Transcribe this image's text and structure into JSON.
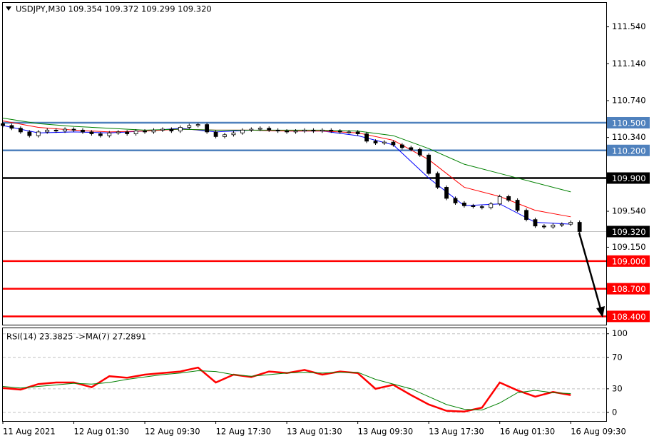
{
  "chart_data": [
    {
      "type": "candlestick",
      "title": "USDJPY,M30  109.354 109.372 109.299 109.320",
      "xlim": [
        0,
        136
      ],
      "ylim": [
        108.31,
        111.8
      ],
      "yticks": [
        {
          "value": 111.54,
          "label": "111.540"
        },
        {
          "value": 111.14,
          "label": "111.140"
        },
        {
          "value": 110.74,
          "label": "110.740"
        },
        {
          "value": 110.34,
          "label": "110.340"
        },
        {
          "value": 109.54,
          "label": "109.540"
        },
        {
          "value": 109.15,
          "label": "109.150"
        }
      ],
      "x": [
        0,
        2,
        4,
        6,
        8,
        10,
        12,
        14,
        16,
        18,
        20,
        22,
        24,
        26,
        28,
        30,
        32,
        34,
        36,
        38,
        40,
        42,
        44,
        46,
        48,
        50,
        52,
        54,
        56,
        58,
        60,
        62,
        64,
        66,
        68,
        70,
        72,
        74,
        76,
        78,
        80,
        82,
        84,
        86,
        88,
        90,
        92,
        94,
        96,
        98,
        100,
        102,
        104,
        106,
        108,
        110,
        112,
        114,
        116,
        118,
        120,
        122,
        124,
        126,
        128,
        130
      ],
      "open": [
        110.49,
        110.47,
        110.44,
        110.4,
        110.36,
        110.4,
        110.42,
        110.41,
        110.43,
        110.42,
        110.4,
        110.38,
        110.36,
        110.39,
        110.4,
        110.38,
        110.41,
        110.4,
        110.42,
        110.43,
        110.41,
        110.45,
        110.47,
        110.48,
        110.4,
        110.35,
        110.37,
        110.39,
        110.42,
        110.43,
        110.44,
        110.42,
        110.41,
        110.4,
        110.41,
        110.42,
        110.41,
        110.42,
        110.41,
        110.4,
        110.4,
        110.38,
        110.3,
        110.28,
        110.29,
        110.26,
        110.23,
        110.21,
        110.15,
        109.95,
        109.8,
        109.68,
        109.63,
        109.6,
        109.59,
        109.58,
        109.62,
        109.7,
        109.66,
        109.55,
        109.45,
        109.38,
        109.37,
        109.39,
        109.4,
        109.42
      ],
      "high": [
        110.51,
        110.49,
        110.46,
        110.42,
        110.42,
        110.44,
        110.44,
        110.45,
        110.45,
        110.44,
        110.42,
        110.4,
        110.41,
        110.42,
        110.42,
        110.43,
        110.43,
        110.44,
        110.45,
        110.45,
        110.47,
        110.49,
        110.5,
        110.5,
        110.42,
        110.39,
        110.41,
        110.44,
        110.45,
        110.46,
        110.46,
        110.44,
        110.43,
        110.43,
        110.44,
        110.44,
        110.44,
        110.44,
        110.43,
        110.42,
        110.42,
        110.4,
        110.32,
        110.31,
        110.31,
        110.28,
        110.25,
        110.23,
        110.17,
        109.97,
        109.82,
        109.7,
        109.65,
        109.62,
        109.61,
        109.64,
        109.72,
        109.72,
        109.68,
        109.57,
        109.47,
        109.4,
        109.41,
        109.42,
        109.44,
        109.44
      ],
      "low": [
        110.45,
        110.42,
        110.38,
        110.34,
        110.34,
        110.38,
        110.39,
        110.39,
        110.4,
        110.38,
        110.36,
        110.34,
        110.34,
        110.37,
        110.36,
        110.36,
        110.38,
        110.38,
        110.4,
        110.39,
        110.39,
        110.43,
        110.45,
        110.38,
        110.33,
        110.33,
        110.35,
        110.37,
        110.4,
        110.41,
        110.4,
        110.39,
        110.38,
        110.38,
        110.39,
        110.39,
        110.39,
        110.39,
        110.38,
        110.38,
        110.36,
        110.28,
        110.26,
        110.26,
        110.24,
        110.21,
        110.19,
        110.13,
        109.93,
        109.78,
        109.66,
        109.61,
        109.58,
        109.57,
        109.56,
        109.56,
        109.6,
        109.64,
        109.53,
        109.43,
        109.36,
        109.35,
        109.35,
        109.37,
        109.38,
        109.3
      ],
      "close": [
        110.47,
        110.44,
        110.4,
        110.36,
        110.4,
        110.42,
        110.41,
        110.43,
        110.42,
        110.4,
        110.38,
        110.36,
        110.39,
        110.4,
        110.38,
        110.41,
        110.4,
        110.42,
        110.43,
        110.41,
        110.45,
        110.47,
        110.48,
        110.4,
        110.35,
        110.37,
        110.39,
        110.42,
        110.43,
        110.44,
        110.42,
        110.41,
        110.4,
        110.41,
        110.42,
        110.41,
        110.42,
        110.41,
        110.4,
        110.4,
        110.38,
        110.3,
        110.28,
        110.29,
        110.26,
        110.23,
        110.21,
        110.15,
        109.95,
        109.8,
        109.68,
        109.63,
        109.6,
        109.59,
        109.58,
        109.62,
        109.7,
        109.66,
        109.55,
        109.45,
        109.38,
        109.37,
        109.39,
        109.4,
        109.42,
        109.32
      ],
      "series": [
        {
          "color": "#0000ff",
          "x": [
            0,
            8,
            16,
            24,
            32,
            40,
            48,
            56,
            64,
            72,
            80,
            88,
            96,
            104,
            112,
            120,
            128
          ],
          "values": [
            110.47,
            110.39,
            110.4,
            110.39,
            110.41,
            110.44,
            110.4,
            110.42,
            110.41,
            110.41,
            110.36,
            110.26,
            109.9,
            109.6,
            109.62,
            109.42,
            109.4
          ]
        },
        {
          "color": "#ff0000",
          "x": [
            0,
            8,
            16,
            24,
            32,
            40,
            48,
            56,
            64,
            72,
            80,
            88,
            96,
            104,
            112,
            120,
            128
          ],
          "values": [
            110.52,
            110.45,
            110.42,
            110.4,
            110.41,
            110.43,
            110.42,
            110.42,
            110.41,
            110.41,
            110.39,
            110.31,
            110.1,
            109.8,
            109.7,
            109.55,
            109.48
          ]
        },
        {
          "color": "#008000",
          "x": [
            0,
            8,
            16,
            24,
            32,
            40,
            48,
            56,
            64,
            72,
            80,
            88,
            96,
            104,
            112,
            120,
            128
          ],
          "values": [
            110.55,
            110.49,
            110.46,
            110.44,
            110.42,
            110.43,
            110.42,
            110.42,
            110.42,
            110.42,
            110.41,
            110.36,
            110.22,
            110.05,
            109.95,
            109.85,
            109.75
          ]
        }
      ],
      "levels": [
        {
          "value": 110.5,
          "label": "110.500",
          "color": "#4f81bd"
        },
        {
          "value": 110.2,
          "label": "110.200",
          "color": "#4f81bd"
        },
        {
          "value": 109.9,
          "label": "109.900",
          "color": "#000000"
        },
        {
          "value": 109.32,
          "label": "109.320",
          "color": "#c0c0c0"
        },
        {
          "value": 109.0,
          "label": "109.000",
          "color": "#ff0000"
        },
        {
          "value": 108.7,
          "label": "108.700",
          "color": "#ff0000"
        },
        {
          "value": 108.4,
          "label": "108.400",
          "color": "#ff0000"
        }
      ]
    },
    {
      "type": "line",
      "title": "RSI(14) 23.3825   ->MA(7) 27.2891",
      "xlim": [
        0,
        136
      ],
      "ylim": [
        -11,
        107
      ],
      "yticks": [
        0,
        30,
        70,
        100
      ],
      "xticks": [
        {
          "value": 0,
          "label": "11 Aug 2021"
        },
        {
          "value": 16,
          "label": "12 Aug 01:30"
        },
        {
          "value": 32,
          "label": "12 Aug 09:30"
        },
        {
          "value": 48,
          "label": "12 Aug 17:30"
        },
        {
          "value": 64,
          "label": "13 Aug 01:30"
        },
        {
          "value": 80,
          "label": "13 Aug 09:30"
        },
        {
          "value": 96,
          "label": "13 Aug 17:30"
        },
        {
          "value": 112,
          "label": "16 Aug 01:30"
        },
        {
          "value": 128,
          "label": "16 Aug 09:30"
        }
      ],
      "x": [
        0,
        4,
        8,
        12,
        16,
        20,
        24,
        28,
        32,
        36,
        40,
        44,
        48,
        52,
        56,
        60,
        64,
        68,
        72,
        76,
        80,
        84,
        88,
        92,
        96,
        100,
        104,
        108,
        112,
        116,
        120,
        124,
        128
      ],
      "series": [
        {
          "color": "#ff0000",
          "values": [
            31,
            29,
            36,
            38,
            38,
            32,
            46,
            44,
            48,
            50,
            52,
            57,
            38,
            48,
            45,
            52,
            50,
            54,
            48,
            52,
            50,
            30,
            35,
            22,
            10,
            2,
            1,
            6,
            38,
            28,
            20,
            26,
            22
          ]
        },
        {
          "color": "#008000",
          "values": [
            33,
            31,
            33,
            35,
            37,
            36,
            38,
            42,
            45,
            48,
            50,
            53,
            52,
            48,
            46,
            48,
            50,
            51,
            50,
            51,
            51,
            42,
            36,
            30,
            20,
            10,
            4,
            3,
            12,
            25,
            28,
            25,
            24
          ]
        }
      ]
    }
  ]
}
